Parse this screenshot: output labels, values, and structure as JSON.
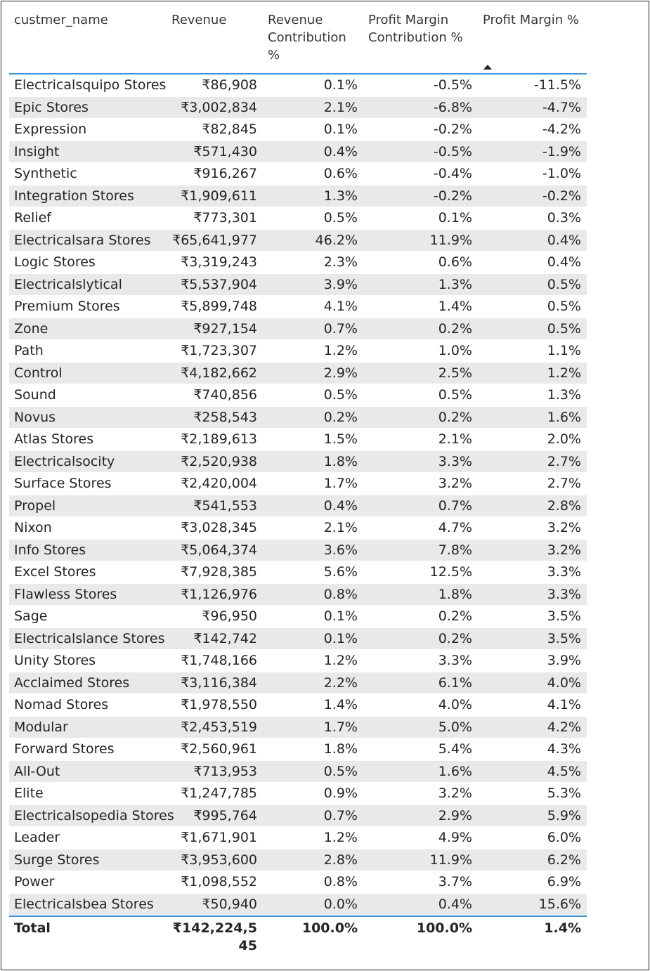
{
  "table": {
    "headers": {
      "name": "custmer_name",
      "revenue": "Revenue",
      "revenue_contribution": "Revenue Contribution %",
      "profit_margin_contribution": "Profit Margin Contribution %",
      "profit_margin": "Profit Margin %"
    },
    "sort": {
      "column": "profit_margin",
      "direction": "ascending"
    },
    "rows": [
      {
        "name": "Electricalsquipo Stores",
        "revenue": "₹86,908",
        "revenue_contribution": "0.1%",
        "profit_margin_contribution": "-0.5%",
        "profit_margin": "-11.5%"
      },
      {
        "name": "Epic Stores",
        "revenue": "₹3,002,834",
        "revenue_contribution": "2.1%",
        "profit_margin_contribution": "-6.8%",
        "profit_margin": "-4.7%"
      },
      {
        "name": "Expression",
        "revenue": "₹82,845",
        "revenue_contribution": "0.1%",
        "profit_margin_contribution": "-0.2%",
        "profit_margin": "-4.2%"
      },
      {
        "name": "Insight",
        "revenue": "₹571,430",
        "revenue_contribution": "0.4%",
        "profit_margin_contribution": "-0.5%",
        "profit_margin": "-1.9%"
      },
      {
        "name": "Synthetic",
        "revenue": "₹916,267",
        "revenue_contribution": "0.6%",
        "profit_margin_contribution": "-0.4%",
        "profit_margin": "-1.0%"
      },
      {
        "name": "Integration Stores",
        "revenue": "₹1,909,611",
        "revenue_contribution": "1.3%",
        "profit_margin_contribution": "-0.2%",
        "profit_margin": "-0.2%"
      },
      {
        "name": "Relief",
        "revenue": "₹773,301",
        "revenue_contribution": "0.5%",
        "profit_margin_contribution": "0.1%",
        "profit_margin": "0.3%"
      },
      {
        "name": "Electricalsara Stores",
        "revenue": "₹65,641,977",
        "revenue_contribution": "46.2%",
        "profit_margin_contribution": "11.9%",
        "profit_margin": "0.4%"
      },
      {
        "name": "Logic Stores",
        "revenue": "₹3,319,243",
        "revenue_contribution": "2.3%",
        "profit_margin_contribution": "0.6%",
        "profit_margin": "0.4%"
      },
      {
        "name": "Electricalslytical",
        "revenue": "₹5,537,904",
        "revenue_contribution": "3.9%",
        "profit_margin_contribution": "1.3%",
        "profit_margin": "0.5%"
      },
      {
        "name": "Premium Stores",
        "revenue": "₹5,899,748",
        "revenue_contribution": "4.1%",
        "profit_margin_contribution": "1.4%",
        "profit_margin": "0.5%"
      },
      {
        "name": "Zone",
        "revenue": "₹927,154",
        "revenue_contribution": "0.7%",
        "profit_margin_contribution": "0.2%",
        "profit_margin": "0.5%"
      },
      {
        "name": "Path",
        "revenue": "₹1,723,307",
        "revenue_contribution": "1.2%",
        "profit_margin_contribution": "1.0%",
        "profit_margin": "1.1%"
      },
      {
        "name": "Control",
        "revenue": "₹4,182,662",
        "revenue_contribution": "2.9%",
        "profit_margin_contribution": "2.5%",
        "profit_margin": "1.2%"
      },
      {
        "name": "Sound",
        "revenue": "₹740,856",
        "revenue_contribution": "0.5%",
        "profit_margin_contribution": "0.5%",
        "profit_margin": "1.3%"
      },
      {
        "name": "Novus",
        "revenue": "₹258,543",
        "revenue_contribution": "0.2%",
        "profit_margin_contribution": "0.2%",
        "profit_margin": "1.6%"
      },
      {
        "name": "Atlas Stores",
        "revenue": "₹2,189,613",
        "revenue_contribution": "1.5%",
        "profit_margin_contribution": "2.1%",
        "profit_margin": "2.0%"
      },
      {
        "name": "Electricalsocity",
        "revenue": "₹2,520,938",
        "revenue_contribution": "1.8%",
        "profit_margin_contribution": "3.3%",
        "profit_margin": "2.7%"
      },
      {
        "name": "Surface Stores",
        "revenue": "₹2,420,004",
        "revenue_contribution": "1.7%",
        "profit_margin_contribution": "3.2%",
        "profit_margin": "2.7%"
      },
      {
        "name": "Propel",
        "revenue": "₹541,553",
        "revenue_contribution": "0.4%",
        "profit_margin_contribution": "0.7%",
        "profit_margin": "2.8%"
      },
      {
        "name": "Nixon",
        "revenue": "₹3,028,345",
        "revenue_contribution": "2.1%",
        "profit_margin_contribution": "4.7%",
        "profit_margin": "3.2%"
      },
      {
        "name": "Info Stores",
        "revenue": "₹5,064,374",
        "revenue_contribution": "3.6%",
        "profit_margin_contribution": "7.8%",
        "profit_margin": "3.2%"
      },
      {
        "name": "Excel Stores",
        "revenue": "₹7,928,385",
        "revenue_contribution": "5.6%",
        "profit_margin_contribution": "12.5%",
        "profit_margin": "3.3%"
      },
      {
        "name": "Flawless Stores",
        "revenue": "₹1,126,976",
        "revenue_contribution": "0.8%",
        "profit_margin_contribution": "1.8%",
        "profit_margin": "3.3%"
      },
      {
        "name": "Sage",
        "revenue": "₹96,950",
        "revenue_contribution": "0.1%",
        "profit_margin_contribution": "0.2%",
        "profit_margin": "3.5%"
      },
      {
        "name": "Electricalslance Stores",
        "revenue": "₹142,742",
        "revenue_contribution": "0.1%",
        "profit_margin_contribution": "0.2%",
        "profit_margin": "3.5%"
      },
      {
        "name": "Unity Stores",
        "revenue": "₹1,748,166",
        "revenue_contribution": "1.2%",
        "profit_margin_contribution": "3.3%",
        "profit_margin": "3.9%"
      },
      {
        "name": "Acclaimed Stores",
        "revenue": "₹3,116,384",
        "revenue_contribution": "2.2%",
        "profit_margin_contribution": "6.1%",
        "profit_margin": "4.0%"
      },
      {
        "name": "Nomad Stores",
        "revenue": "₹1,978,550",
        "revenue_contribution": "1.4%",
        "profit_margin_contribution": "4.0%",
        "profit_margin": "4.1%"
      },
      {
        "name": "Modular",
        "revenue": "₹2,453,519",
        "revenue_contribution": "1.7%",
        "profit_margin_contribution": "5.0%",
        "profit_margin": "4.2%"
      },
      {
        "name": "Forward Stores",
        "revenue": "₹2,560,961",
        "revenue_contribution": "1.8%",
        "profit_margin_contribution": "5.4%",
        "profit_margin": "4.3%"
      },
      {
        "name": "All-Out",
        "revenue": "₹713,953",
        "revenue_contribution": "0.5%",
        "profit_margin_contribution": "1.6%",
        "profit_margin": "4.5%"
      },
      {
        "name": "Elite",
        "revenue": "₹1,247,785",
        "revenue_contribution": "0.9%",
        "profit_margin_contribution": "3.2%",
        "profit_margin": "5.3%"
      },
      {
        "name": "Electricalsopedia Stores",
        "revenue": "₹995,764",
        "revenue_contribution": "0.7%",
        "profit_margin_contribution": "2.9%",
        "profit_margin": "5.9%"
      },
      {
        "name": "Leader",
        "revenue": "₹1,671,901",
        "revenue_contribution": "1.2%",
        "profit_margin_contribution": "4.9%",
        "profit_margin": "6.0%"
      },
      {
        "name": "Surge Stores",
        "revenue": "₹3,953,600",
        "revenue_contribution": "2.8%",
        "profit_margin_contribution": "11.9%",
        "profit_margin": "6.2%"
      },
      {
        "name": "Power",
        "revenue": "₹1,098,552",
        "revenue_contribution": "0.8%",
        "profit_margin_contribution": "3.7%",
        "profit_margin": "6.9%"
      },
      {
        "name": "Electricalsbea Stores",
        "revenue": "₹50,940",
        "revenue_contribution": "0.0%",
        "profit_margin_contribution": "0.4%",
        "profit_margin": "15.6%"
      }
    ],
    "total": {
      "label": "Total",
      "revenue": "₹142,224,545",
      "revenue_contribution": "100.0%",
      "profit_margin_contribution": "100.0%",
      "profit_margin": "1.4%"
    }
  }
}
